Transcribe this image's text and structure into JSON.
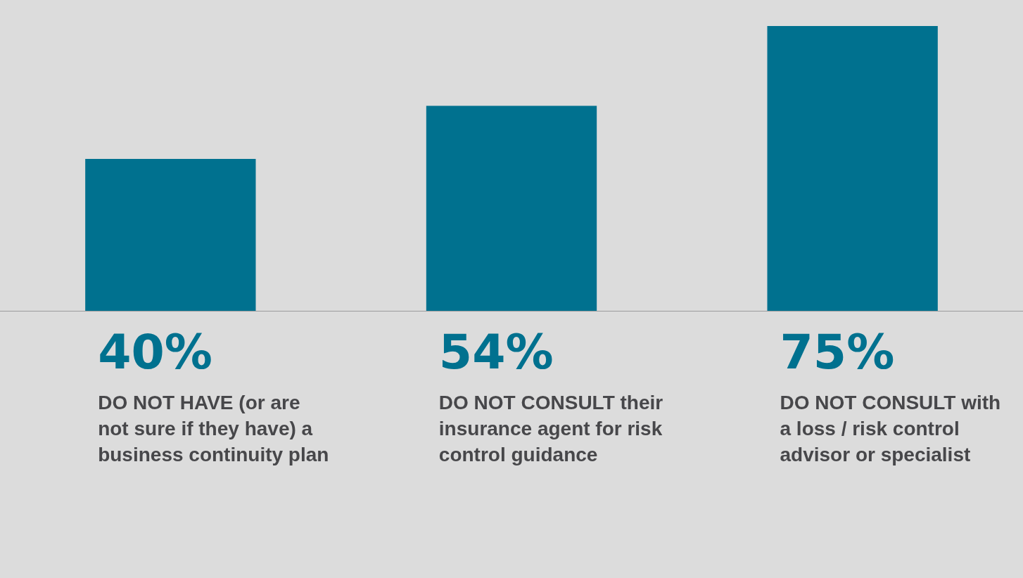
{
  "chart_data": {
    "type": "bar",
    "categories": [
      "DO NOT HAVE (or are not sure if they have) a business continuity plan",
      "DO NOT CONSULT their insurance agent for risk control guidance",
      "DO NOT CONSULT with a loss / risk control advisor or specialist"
    ],
    "values": [
      40,
      54,
      75
    ],
    "value_labels": [
      "40%",
      "54%",
      "75%"
    ],
    "color": "#00718f"
  }
}
